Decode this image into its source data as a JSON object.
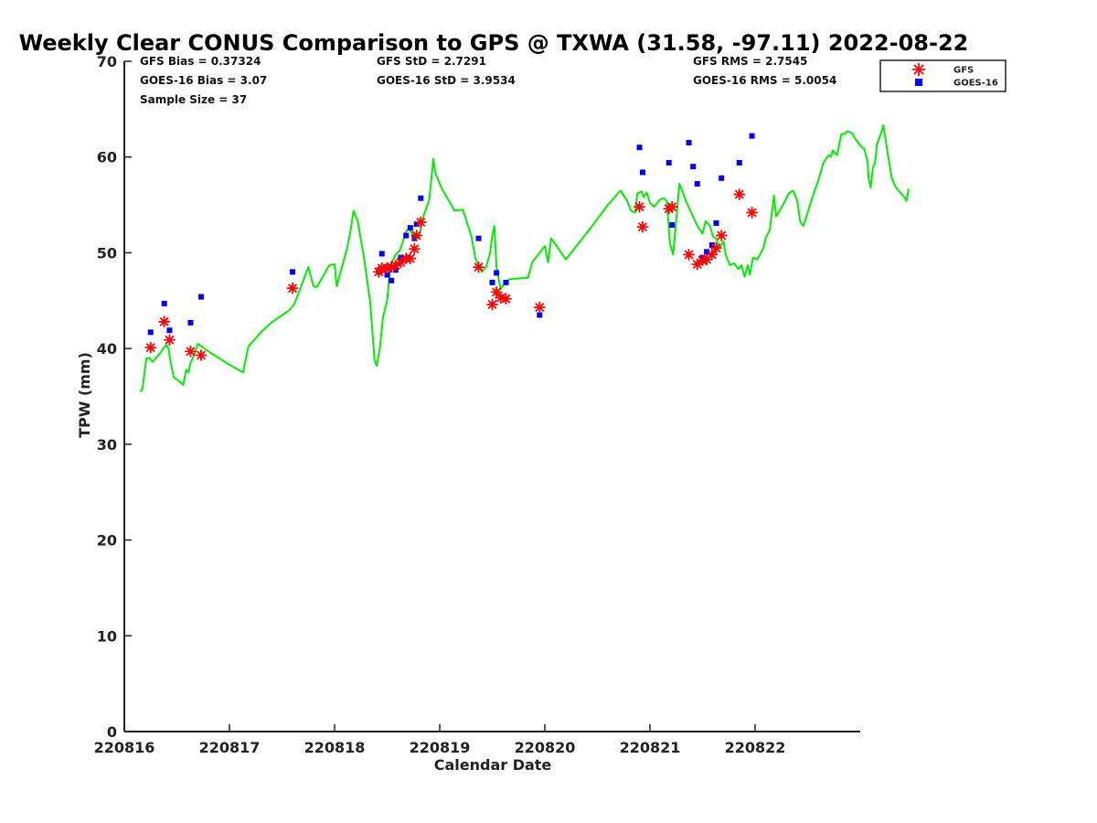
{
  "chart_data": {
    "type": "line",
    "title": "Weekly Clear CONUS Comparison to GPS @ TXWA (31.58, -97.11) 2022-08-22",
    "xlabel": "Calendar Date",
    "ylabel": "TPW (mm)",
    "xlim": [
      "220816",
      "220823"
    ],
    "ylim": [
      0,
      70
    ],
    "x_ticks": [
      "220816",
      "220817",
      "220818",
      "220819",
      "220820",
      "220821",
      "220822"
    ],
    "y_ticks": [
      0,
      10,
      20,
      30,
      40,
      50,
      60,
      70
    ],
    "grid": false,
    "legend_position": "top-right",
    "stats": {
      "gfs_bias": "GFS Bias = 0.37324",
      "goes_bias": "GOES-16 Bias = 3.07",
      "sample_size": "Sample Size = 37",
      "gfs_std": "GFS StD = 2.7291",
      "goes_std": "GOES-16 StD = 3.9534",
      "gfs_rms": "GFS RMS = 2.7545",
      "goes_rms": "GOES-16 RMS = 5.0054"
    },
    "series": [
      {
        "kind": "line",
        "color": "#00ee00",
        "points": [
          [
            0.15,
            35.5
          ],
          [
            0.17,
            35.7
          ],
          [
            0.21,
            39.0
          ],
          [
            0.24,
            39.0
          ],
          [
            0.27,
            38.6
          ],
          [
            0.3,
            39.0
          ],
          [
            0.34,
            39.5
          ],
          [
            0.37,
            40.0
          ],
          [
            0.4,
            40.4
          ],
          [
            0.42,
            40.0
          ],
          [
            0.44,
            38.6
          ],
          [
            0.47,
            37.0
          ],
          [
            0.52,
            36.6
          ],
          [
            0.56,
            36.2
          ],
          [
            0.59,
            37.8
          ],
          [
            0.61,
            37.5
          ],
          [
            0.63,
            38.5
          ],
          [
            0.66,
            39.2
          ],
          [
            0.7,
            40.5
          ],
          [
            0.8,
            39.7
          ],
          [
            1.0,
            38.3
          ],
          [
            1.13,
            37.5
          ],
          [
            1.18,
            40.2
          ],
          [
            1.3,
            41.7
          ],
          [
            1.41,
            42.8
          ],
          [
            1.57,
            44.0
          ],
          [
            1.62,
            44.7
          ],
          [
            1.75,
            48.5
          ],
          [
            1.8,
            46.5
          ],
          [
            1.83,
            46.4
          ],
          [
            1.95,
            48.7
          ],
          [
            2.0,
            48.8
          ],
          [
            2.02,
            46.5
          ],
          [
            2.12,
            50.5
          ],
          [
            2.15,
            52.2
          ],
          [
            2.18,
            54.4
          ],
          [
            2.22,
            53.3
          ],
          [
            2.28,
            49.5
          ],
          [
            2.34,
            44.7
          ],
          [
            2.38,
            38.8
          ],
          [
            2.4,
            38.2
          ],
          [
            2.43,
            40.0
          ],
          [
            2.46,
            43.2
          ],
          [
            2.5,
            45.0
          ],
          [
            2.53,
            48.7
          ],
          [
            2.58,
            49.8
          ],
          [
            2.62,
            50.2
          ],
          [
            2.68,
            52.2
          ],
          [
            2.71,
            52.6
          ],
          [
            2.74,
            51.9
          ],
          [
            2.77,
            52.0
          ],
          [
            2.8,
            51.5
          ],
          [
            2.85,
            54.0
          ],
          [
            2.9,
            55.5
          ],
          [
            2.94,
            59.8
          ],
          [
            2.96,
            58.3
          ],
          [
            3.02,
            56.7
          ],
          [
            3.1,
            55.2
          ],
          [
            3.14,
            54.4
          ],
          [
            3.22,
            54.5
          ],
          [
            3.3,
            51.8
          ],
          [
            3.34,
            49.4
          ],
          [
            3.37,
            48.7
          ],
          [
            3.4,
            48.0
          ],
          [
            3.44,
            48.5
          ],
          [
            3.48,
            50.0
          ],
          [
            3.5,
            51.8
          ],
          [
            3.52,
            52.8
          ],
          [
            3.54,
            48.5
          ],
          [
            3.58,
            46.2
          ],
          [
            3.63,
            47.0
          ],
          [
            3.68,
            47.3
          ],
          [
            3.74,
            47.3
          ],
          [
            3.8,
            47.4
          ],
          [
            3.84,
            47.4
          ],
          [
            3.88,
            49.0
          ],
          [
            4.0,
            50.7
          ],
          [
            4.03,
            49.0
          ],
          [
            4.06,
            51.5
          ],
          [
            4.1,
            50.9
          ],
          [
            4.2,
            49.3
          ],
          [
            4.3,
            50.7
          ],
          [
            4.45,
            52.8
          ],
          [
            4.6,
            55.0
          ],
          [
            4.72,
            56.5
          ],
          [
            4.78,
            55.5
          ],
          [
            4.82,
            54.4
          ],
          [
            4.86,
            54.2
          ],
          [
            4.88,
            56.2
          ],
          [
            4.92,
            56.4
          ],
          [
            4.94,
            55.8
          ],
          [
            4.97,
            56.3
          ],
          [
            5.0,
            55.2
          ],
          [
            5.04,
            54.8
          ],
          [
            5.09,
            55.5
          ],
          [
            5.13,
            55.7
          ],
          [
            5.16,
            55.4
          ],
          [
            5.19,
            51.0
          ],
          [
            5.22,
            49.8
          ],
          [
            5.25,
            53.5
          ],
          [
            5.28,
            57.2
          ],
          [
            5.35,
            55.2
          ],
          [
            5.45,
            52.8
          ],
          [
            5.5,
            52.0
          ],
          [
            5.53,
            53.3
          ],
          [
            5.57,
            52.8
          ],
          [
            5.6,
            51.7
          ],
          [
            5.63,
            51.5
          ],
          [
            5.66,
            50.5
          ],
          [
            5.7,
            51.2
          ],
          [
            5.72,
            49.8
          ],
          [
            5.76,
            48.7
          ],
          [
            5.8,
            48.9
          ],
          [
            5.84,
            48.3
          ],
          [
            5.87,
            48.7
          ],
          [
            5.9,
            47.5
          ],
          [
            5.93,
            48.7
          ],
          [
            5.95,
            47.7
          ],
          [
            5.98,
            49.5
          ],
          [
            6.02,
            49.3
          ],
          [
            6.05,
            49.9
          ],
          [
            6.08,
            50.5
          ],
          [
            6.1,
            51.5
          ],
          [
            6.14,
            52.4
          ],
          [
            6.18,
            56.0
          ],
          [
            6.2,
            53.8
          ],
          [
            6.24,
            54.5
          ],
          [
            6.28,
            55.3
          ],
          [
            6.32,
            56.2
          ],
          [
            6.36,
            56.5
          ],
          [
            6.4,
            55.5
          ],
          [
            6.43,
            53.2
          ],
          [
            6.46,
            52.8
          ],
          [
            6.5,
            54.2
          ],
          [
            6.55,
            56.0
          ],
          [
            6.6,
            57.5
          ],
          [
            6.65,
            59.4
          ],
          [
            6.7,
            60.2
          ],
          [
            6.72,
            60.0
          ],
          [
            6.74,
            60.7
          ],
          [
            6.76,
            60.4
          ],
          [
            6.78,
            60.2
          ],
          [
            6.82,
            62.4
          ],
          [
            6.85,
            62.4
          ],
          [
            6.88,
            62.7
          ],
          [
            6.92,
            62.5
          ],
          [
            6.96,
            61.8
          ],
          [
            7.0,
            61.2
          ],
          [
            7.04,
            60.8
          ],
          [
            7.07,
            59.5
          ],
          [
            7.08,
            57.8
          ],
          [
            7.1,
            56.8
          ],
          [
            7.12,
            58.9
          ],
          [
            7.14,
            59.3
          ],
          [
            7.16,
            61.4
          ],
          [
            7.2,
            62.5
          ],
          [
            7.22,
            63.3
          ],
          [
            7.26,
            60.5
          ],
          [
            7.3,
            57.8
          ],
          [
            7.34,
            56.8
          ],
          [
            7.38,
            56.3
          ],
          [
            7.42,
            55.8
          ],
          [
            7.44,
            55.4
          ],
          [
            7.46,
            56.7
          ]
        ]
      },
      {
        "name": "GFS",
        "kind": "marker",
        "marker": "asterisk",
        "color": "#ff0000",
        "points": [
          [
            0.25,
            40.1
          ],
          [
            0.38,
            42.8
          ],
          [
            0.43,
            40.9
          ],
          [
            0.63,
            39.7
          ],
          [
            0.73,
            39.3
          ],
          [
            1.6,
            46.3
          ],
          [
            2.42,
            48.0
          ],
          [
            2.45,
            48.4
          ],
          [
            2.5,
            48.4
          ],
          [
            2.54,
            48.5
          ],
          [
            2.58,
            48.7
          ],
          [
            2.63,
            49.0
          ],
          [
            2.68,
            49.4
          ],
          [
            2.72,
            49.4
          ],
          [
            2.76,
            50.4
          ],
          [
            2.78,
            51.8
          ],
          [
            2.82,
            53.2
          ],
          [
            3.37,
            48.5
          ],
          [
            3.5,
            44.6
          ],
          [
            3.54,
            45.9
          ],
          [
            3.58,
            45.3
          ],
          [
            3.63,
            45.2
          ],
          [
            3.95,
            44.3
          ],
          [
            4.9,
            54.8
          ],
          [
            4.93,
            52.7
          ],
          [
            5.18,
            54.6
          ],
          [
            5.21,
            54.8
          ],
          [
            5.37,
            49.8
          ],
          [
            5.45,
            48.8
          ],
          [
            5.5,
            49.2
          ],
          [
            5.54,
            49.3
          ],
          [
            5.59,
            49.8
          ],
          [
            5.63,
            50.5
          ],
          [
            5.68,
            51.8
          ],
          [
            5.85,
            56.1
          ],
          [
            5.97,
            54.2
          ]
        ]
      },
      {
        "name": "GOES-16",
        "kind": "marker",
        "marker": "square",
        "color": "#0000ff",
        "points": [
          [
            0.25,
            41.7
          ],
          [
            0.38,
            44.7
          ],
          [
            0.43,
            41.9
          ],
          [
            0.63,
            42.7
          ],
          [
            0.73,
            45.4
          ],
          [
            1.6,
            48.0
          ],
          [
            2.42,
            48.0
          ],
          [
            2.45,
            49.9
          ],
          [
            2.5,
            47.7
          ],
          [
            2.54,
            47.1
          ],
          [
            2.58,
            48.2
          ],
          [
            2.63,
            49.5
          ],
          [
            2.68,
            51.8
          ],
          [
            2.72,
            52.6
          ],
          [
            2.76,
            51.5
          ],
          [
            2.78,
            53.0
          ],
          [
            2.82,
            55.7
          ],
          [
            3.37,
            51.5
          ],
          [
            3.5,
            46.9
          ],
          [
            3.54,
            47.9
          ],
          [
            3.63,
            46.9
          ],
          [
            3.95,
            43.5
          ],
          [
            4.9,
            61.0
          ],
          [
            4.93,
            58.4
          ],
          [
            5.18,
            59.4
          ],
          [
            5.21,
            52.9
          ],
          [
            5.37,
            61.5
          ],
          [
            5.41,
            59.0
          ],
          [
            5.45,
            57.2
          ],
          [
            5.5,
            49.5
          ],
          [
            5.54,
            50.1
          ],
          [
            5.59,
            50.8
          ],
          [
            5.63,
            53.1
          ],
          [
            5.68,
            57.8
          ],
          [
            5.85,
            59.4
          ],
          [
            5.97,
            62.2
          ]
        ]
      }
    ]
  }
}
